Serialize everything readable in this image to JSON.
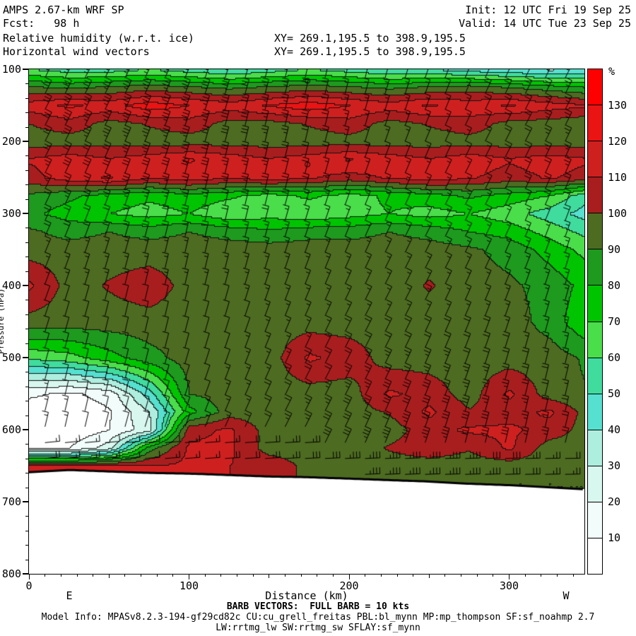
{
  "header": {
    "model_line1": "AMPS 2.67-km WRF SP",
    "fcst_label": "Fcst:   98 h",
    "init_label": "Init: 12 UTC Fri 19 Sep 25",
    "valid_label": "Valid: 14 UTC Tue 23 Sep 25",
    "field_line1": "Relative humidity (w.r.t. ice)",
    "field_line2": "Horizontal wind vectors",
    "xy_line1": "XY= 269.1,195.5 to 398.9,195.5",
    "xy_line2": "XY= 269.1,195.5 to 398.9,195.5"
  },
  "footer": {
    "barb_note": "BARB VECTORS:  FULL BARB = 10 kts",
    "model_info1": "Model Info: MPASv8.2.3-194-gf29cd82c CU:cu_grell_freitas PBL:bl_mynn MP:mp_thompson SF:sf_noahmp 2.7",
    "model_info2": "LW:rrtmg_lw SW:rrtmg_sw SFLAY:sf_mynn"
  },
  "chart_data": {
    "type": "heatmap",
    "title": "Relative humidity (w.r.t. ice) vertical cross-section with horizontal wind vectors",
    "xlabel": "Distance (km)",
    "ylabel": "Pressure (hPa)",
    "x_end_labels": {
      "left": "E",
      "right": "W"
    },
    "x_ticks": [
      0,
      100,
      200,
      300
    ],
    "x_range": [
      0,
      347
    ],
    "y_ticks": [
      100,
      200,
      300,
      400,
      500,
      600,
      700,
      800
    ],
    "y_range": [
      100,
      800
    ],
    "y_axis_inverted_note": "pressure increases downward",
    "colorbar": {
      "unit": "%",
      "levels": [
        10,
        20,
        30,
        40,
        50,
        60,
        70,
        80,
        90,
        100,
        110,
        120,
        130
      ],
      "colors": [
        "#ffffff",
        "#f2fdfb",
        "#d8f7ef",
        "#aeeede",
        "#55e0cf",
        "#3fdc9e",
        "#4ade4a",
        "#00c400",
        "#1e9a1e",
        "#4d6b21",
        "#a81e1e",
        "#cf2020",
        "#ea1414",
        "#ff0000"
      ]
    },
    "grid": {
      "distance_km": [
        0,
        25,
        50,
        75,
        100,
        125,
        150,
        175,
        200,
        225,
        250,
        275,
        300,
        325,
        350
      ],
      "pressure_hpa": [
        100,
        125,
        150,
        175,
        200,
        225,
        250,
        275,
        300,
        325,
        350,
        400,
        450,
        500,
        550,
        575,
        600,
        625,
        650,
        675,
        700,
        750,
        800
      ],
      "rh_percent": [
        [
          60,
          55,
          55,
          60,
          55,
          50,
          55,
          60,
          55,
          50,
          50,
          45,
          42,
          38,
          40
        ],
        [
          92,
          88,
          92,
          95,
          92,
          88,
          92,
          95,
          92,
          88,
          92,
          95,
          90,
          85,
          80
        ],
        [
          115,
          122,
          116,
          126,
          120,
          115,
          121,
          126,
          120,
          115,
          121,
          116,
          121,
          115,
          111
        ],
        [
          100,
          106,
          96,
          101,
          106,
          96,
          96,
          101,
          106,
          96,
          101,
          106,
          96,
          95,
          92
        ],
        [
          95,
          95,
          96,
          95,
          95,
          96,
          95,
          95,
          96,
          95,
          95,
          96,
          95,
          95,
          95
        ],
        [
          111,
          116,
          111,
          116,
          121,
          116,
          111,
          116,
          121,
          116,
          111,
          116,
          111,
          115,
          111
        ],
        [
          106,
          116,
          121,
          111,
          116,
          111,
          116,
          111,
          106,
          111,
          116,
          111,
          106,
          111,
          106
        ],
        [
          88,
          82,
          76,
          72,
          76,
          72,
          66,
          72,
          66,
          72,
          76,
          82,
          76,
          70,
          52
        ],
        [
          82,
          76,
          70,
          66,
          70,
          62,
          66,
          62,
          66,
          70,
          66,
          70,
          64,
          55,
          45
        ],
        [
          92,
          86,
          90,
          86,
          90,
          86,
          82,
          86,
          86,
          90,
          86,
          80,
          76,
          66,
          56
        ],
        [
          95,
          95,
          95,
          95,
          95,
          95,
          95,
          95,
          95,
          95,
          95,
          92,
          86,
          76,
          66
        ],
        [
          112,
          96,
          101,
          106,
          96,
          95,
          95,
          95,
          95,
          95,
          101,
          95,
          92,
          86,
          76
        ],
        [
          96,
          95,
          95,
          96,
          95,
          95,
          95,
          95,
          95,
          96,
          95,
          95,
          95,
          86,
          70
        ],
        [
          62,
          66,
          76,
          86,
          95,
          95,
          95,
          112,
          106,
          95,
          95,
          95,
          95,
          95,
          88
        ],
        [
          12,
          8,
          14,
          45,
          90,
          95,
          95,
          95,
          95,
          112,
          106,
          95,
          112,
          95,
          90
        ],
        [
          4,
          3,
          9,
          30,
          76,
          95,
          95,
          95,
          95,
          101,
          112,
          101,
          106,
          112,
          95
        ],
        [
          3,
          2,
          10,
          26,
          106,
          112,
          95,
          95,
          95,
          95,
          106,
          112,
          112,
          106,
          95
        ],
        [
          8,
          10,
          25,
          85,
          112,
          112,
          95,
          95,
          95,
          101,
          106,
          101,
          112,
          95,
          95
        ],
        [
          112,
          110,
          112,
          110,
          112,
          110,
          108,
          96,
          95,
          95,
          95,
          95,
          95,
          95,
          92
        ],
        [
          null,
          null,
          null,
          null,
          null,
          null,
          null,
          null,
          null,
          null,
          null,
          90,
          90,
          90,
          90
        ],
        [
          null,
          null,
          null,
          null,
          null,
          null,
          null,
          null,
          null,
          null,
          null,
          null,
          null,
          null,
          null
        ],
        [
          null,
          null,
          null,
          null,
          null,
          null,
          null,
          null,
          null,
          null,
          null,
          null,
          null,
          null,
          null
        ],
        [
          null,
          null,
          null,
          null,
          null,
          null,
          null,
          null,
          null,
          null,
          null,
          null,
          null,
          null,
          null
        ]
      ]
    },
    "terrain": {
      "distance_km": [
        0,
        25,
        50,
        75,
        100,
        125,
        150,
        175,
        200,
        225,
        250,
        275,
        300,
        325,
        350
      ],
      "surface_pressure_hpa": [
        659,
        656,
        658,
        660,
        661,
        663,
        665,
        666,
        668,
        670,
        672,
        675,
        677,
        680,
        683
      ]
    },
    "wind_barbs": {
      "full_barb_kts": 10,
      "station_spacing_km": 12.5,
      "level_spacing_hpa": 22,
      "speed_range_kts": [
        5,
        44
      ],
      "direction_note": "staffs slanted up-right aloft; barbs turn horizontal in strong flow just above the terrain"
    },
    "calm_circles": [
      {
        "distance_km": 174,
        "pressure_hpa": 116
      },
      {
        "distance_km": 174,
        "pressure_hpa": 232
      }
    ]
  }
}
